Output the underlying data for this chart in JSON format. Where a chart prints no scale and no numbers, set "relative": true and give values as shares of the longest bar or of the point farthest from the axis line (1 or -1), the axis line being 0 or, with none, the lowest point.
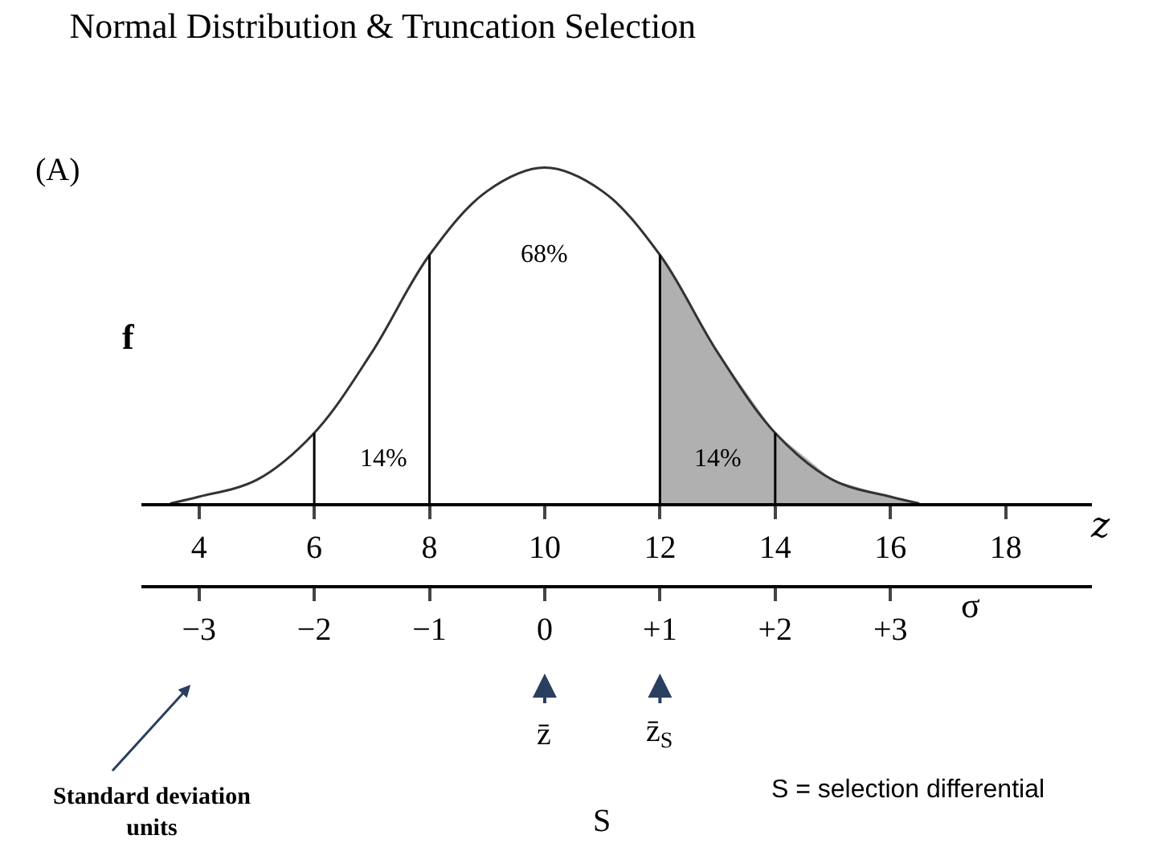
{
  "chart_data": {
    "type": "line",
    "title": "Normal Distribution & Truncation Selection",
    "xlabel": "z",
    "ylabel": "f",
    "x2label": "σ",
    "relative": true,
    "marker": "none",
    "xlim": [
      3,
      19.5
    ],
    "xticks": [
      4,
      6,
      8,
      10,
      12,
      14,
      16,
      18
    ],
    "x2lim": [
      -3.5,
      4.75
    ],
    "x2ticks": [
      {
        "value": -3,
        "label": "−3"
      },
      {
        "value": -2,
        "label": "−2"
      },
      {
        "value": -1,
        "label": "−1"
      },
      0,
      {
        "value": 1,
        "label": "+1"
      },
      {
        "value": 2,
        "label": "+2"
      },
      {
        "value": 3,
        "label": "+3"
      }
    ],
    "series": [
      {
        "type": "area",
        "color": "#b0b0b0",
        "x": [
          12,
          13,
          14,
          15,
          16,
          16.5
        ],
        "values": [
          0.74,
          0.45,
          0.21,
          0.07,
          0.02,
          0
        ]
      },
      {
        "color": "#333333",
        "x": [
          3.5,
          4,
          5,
          6,
          7,
          8,
          9,
          10,
          11,
          12,
          13,
          14,
          15,
          16,
          16.5
        ],
        "values": [
          0,
          0.02,
          0.07,
          0.21,
          0.45,
          0.74,
          0.93,
          1,
          0.93,
          0.74,
          0.45,
          0.21,
          0.07,
          0.02,
          0
        ]
      }
    ],
    "ref_lines": [
      {
        "axis": "x",
        "value": 6,
        "color": "#000000"
      },
      {
        "axis": "x",
        "value": 8,
        "color": "#000000"
      },
      {
        "axis": "x",
        "value": 12,
        "color": "#000000"
      },
      {
        "axis": "x",
        "value": 14,
        "color": "#000000"
      }
    ],
    "annotations": [
      "68%",
      "14%",
      "14%",
      "(A)",
      "z̄",
      "z̄$_{S}$",
      "S",
      "Standard deviation units",
      "S = selection differential"
    ]
  }
}
